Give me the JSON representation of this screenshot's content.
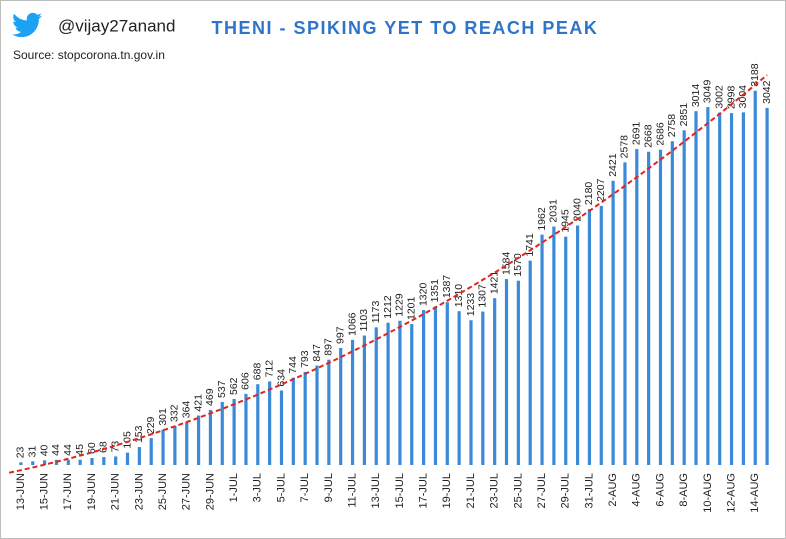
{
  "chart_data": {
    "type": "bar",
    "handle": "@vijay27anand",
    "title": "THENI - SPIKING YET TO REACH PEAK",
    "source": "Source: stopcorona.tn.gov.in",
    "categories": [
      "13-JUN",
      null,
      "15-JUN",
      null,
      "17-JUN",
      null,
      "19-JUN",
      null,
      "21-JUN",
      null,
      "23-JUN",
      null,
      "25-JUN",
      null,
      "27-JUN",
      null,
      "29-JUN",
      null,
      "1-JUL",
      null,
      "3-JUL",
      null,
      "5-JUL",
      null,
      "7-JUL",
      null,
      "9-JUL",
      null,
      "11-JUL",
      null,
      "13-JUL",
      null,
      "15-JUL",
      null,
      "17-JUL",
      null,
      "19-JUL",
      null,
      "21-JUL",
      null,
      "23-JUL",
      null,
      "25-JUL",
      null,
      "27-JUL",
      null,
      "29-JUL",
      null,
      "31-JUL",
      null,
      "2-AUG",
      null,
      "4-AUG",
      null,
      "6-AUG",
      null,
      "8-AUG",
      null,
      "10-AUG",
      null,
      "12-AUG",
      null,
      "14-AUG",
      null
    ],
    "values": [
      23,
      31,
      40,
      44,
      44,
      45,
      60,
      68,
      73,
      105,
      153,
      229,
      301,
      332,
      364,
      421,
      469,
      537,
      562,
      606,
      688,
      712,
      634,
      744,
      793,
      847,
      897,
      997,
      1066,
      1103,
      1173,
      1212,
      1229,
      1201,
      1320,
      1351,
      1387,
      1310,
      1233,
      1307,
      1421,
      1584,
      1570,
      1741,
      1962,
      2031,
      1945,
      2040,
      2180,
      2207,
      2421,
      2578,
      2691,
      2668,
      2686,
      2758,
      2851,
      3014,
      3049,
      3002,
      2998,
      3004,
      3188,
      3042
    ],
    "color": "#3a8ad8",
    "ylim": [
      0,
      3450
    ],
    "trendline": {
      "color": "#e0251e",
      "order": 2
    }
  }
}
